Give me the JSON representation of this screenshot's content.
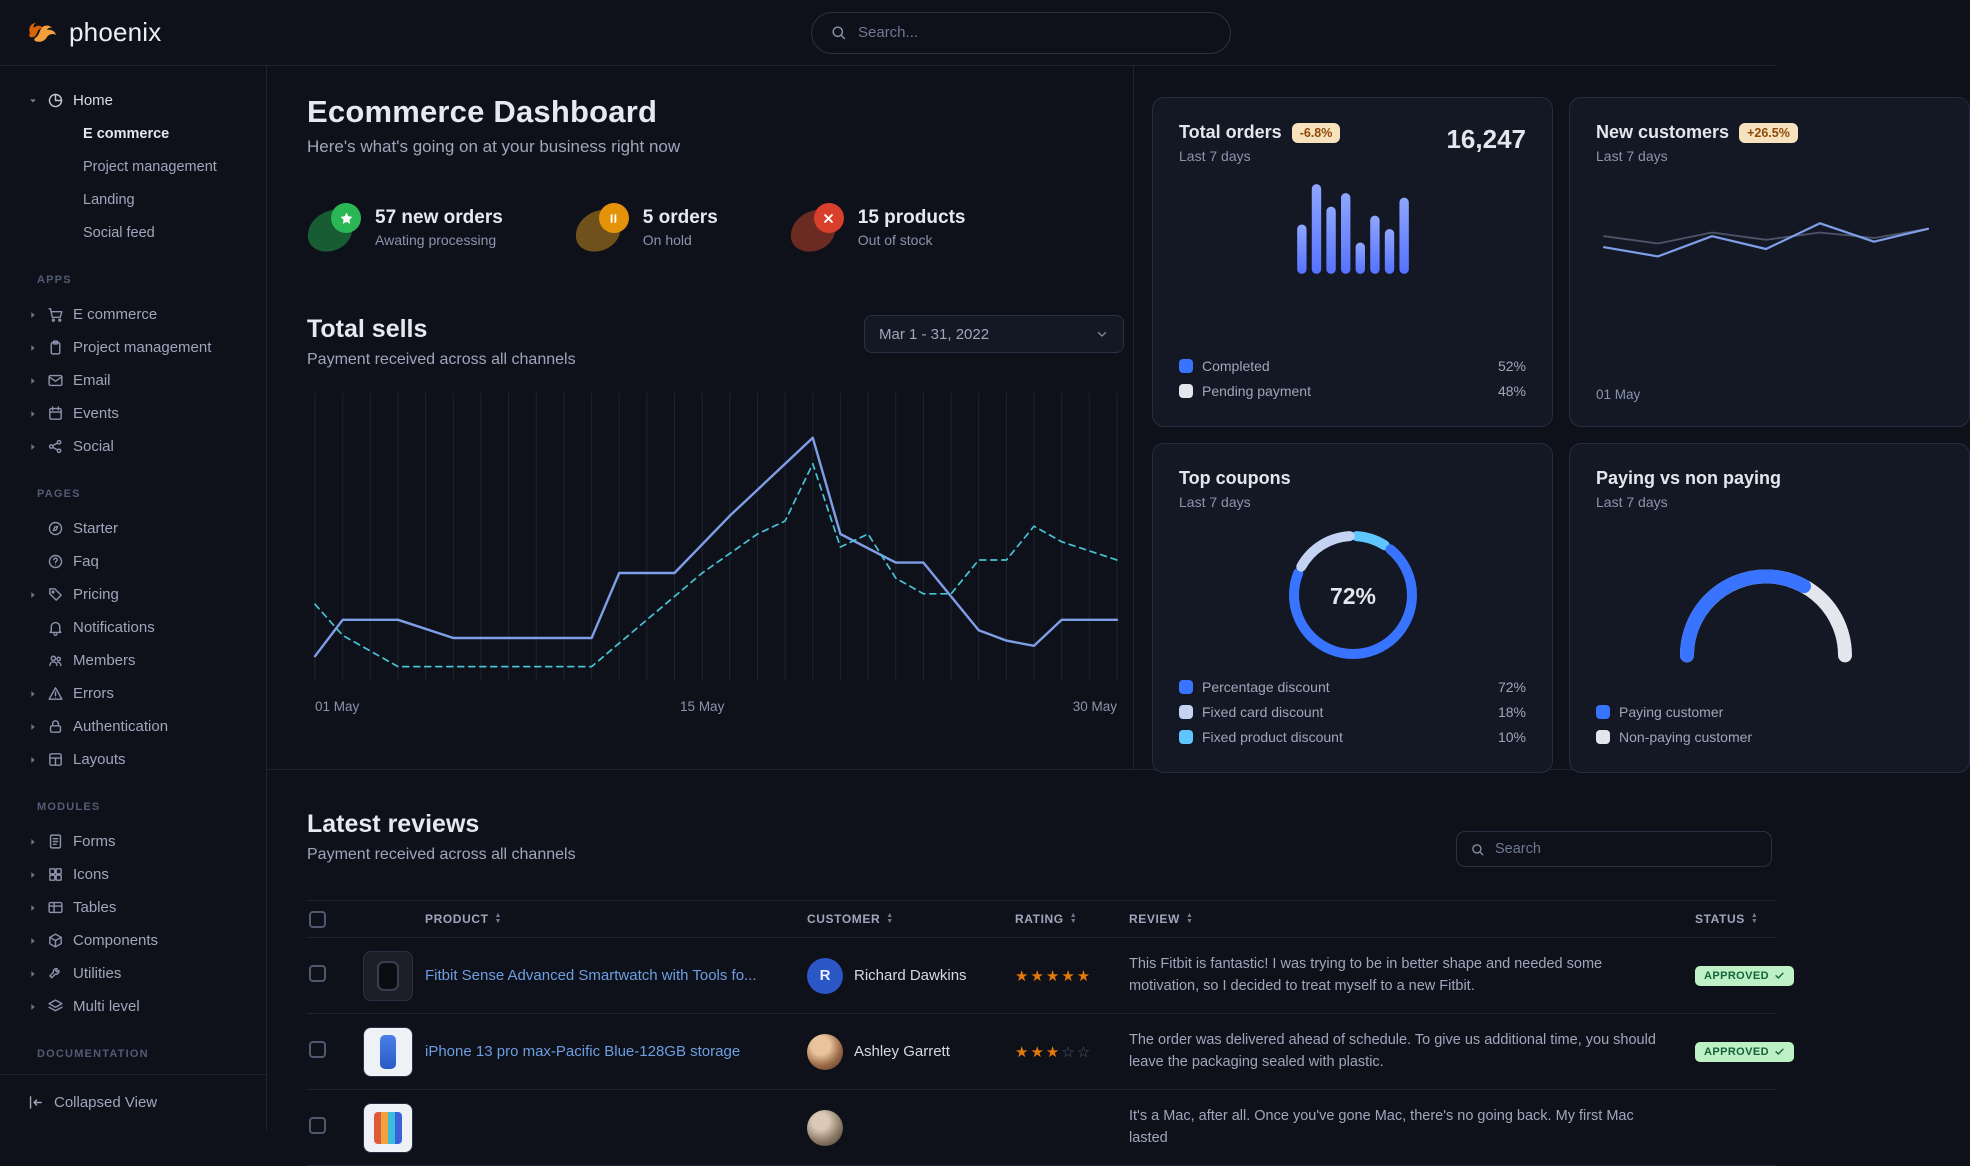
{
  "brand": {
    "name": "phoenix"
  },
  "topbar": {
    "search_placeholder": "Search..."
  },
  "sidebar": {
    "home": {
      "label": "Home",
      "icon": "pie",
      "children": [
        {
          "label": "E commerce",
          "active": true
        },
        {
          "label": "Project management",
          "active": false
        },
        {
          "label": "Landing",
          "active": false
        },
        {
          "label": "Social feed",
          "active": false
        }
      ]
    },
    "sections": [
      {
        "label": "APPS",
        "items": [
          {
            "label": "E commerce",
            "icon": "cart",
            "caret": true
          },
          {
            "label": "Project management",
            "icon": "clipboard",
            "caret": true
          },
          {
            "label": "Email",
            "icon": "mail",
            "caret": true
          },
          {
            "label": "Events",
            "icon": "calendar",
            "caret": true
          },
          {
            "label": "Social",
            "icon": "share",
            "caret": true
          }
        ]
      },
      {
        "label": "PAGES",
        "items": [
          {
            "label": "Starter",
            "icon": "compass",
            "caret": false
          },
          {
            "label": "Faq",
            "icon": "question",
            "caret": false
          },
          {
            "label": "Pricing",
            "icon": "tag",
            "caret": true
          },
          {
            "label": "Notifications",
            "icon": "bell",
            "caret": false
          },
          {
            "label": "Members",
            "icon": "users",
            "caret": false
          },
          {
            "label": "Errors",
            "icon": "warning",
            "caret": true
          },
          {
            "label": "Authentication",
            "icon": "lock",
            "caret": true
          },
          {
            "label": "Layouts",
            "icon": "layout",
            "caret": true
          }
        ]
      },
      {
        "label": "MODULES",
        "items": [
          {
            "label": "Forms",
            "icon": "file",
            "caret": true
          },
          {
            "label": "Icons",
            "icon": "grid",
            "caret": true
          },
          {
            "label": "Tables",
            "icon": "table",
            "caret": true
          },
          {
            "label": "Components",
            "icon": "box",
            "caret": true
          },
          {
            "label": "Utilities",
            "icon": "wrench",
            "caret": true
          },
          {
            "label": "Multi level",
            "icon": "layers",
            "caret": true
          }
        ]
      },
      {
        "label": "DOCUMENTATION",
        "items": []
      }
    ],
    "footer": {
      "label": "Collapsed View"
    }
  },
  "dashboard": {
    "title": "Ecommerce Dashboard",
    "subtitle": "Here's what's going on at your business right now",
    "stats": [
      {
        "value": "57 new orders",
        "caption": "Awating processing",
        "icon": "star",
        "color": "green"
      },
      {
        "value": "5 orders",
        "caption": "On hold",
        "icon": "pause",
        "color": "orange"
      },
      {
        "value": "15 products",
        "caption": "Out of stock",
        "icon": "x",
        "color": "red"
      }
    ]
  },
  "total_sells": {
    "title": "Total sells",
    "subtitle": "Payment received across all channels",
    "date_range": "Mar 1 - 31, 2022",
    "chart": {
      "type": "line",
      "x_ticks": [
        "01 May",
        "15 May",
        "30 May"
      ],
      "days": 30,
      "series": [
        {
          "name": "current",
          "style": "solid",
          "color": "#7e9fe8",
          "points": [
            [
              1,
              8
            ],
            [
              2,
              22
            ],
            [
              4,
              22
            ],
            [
              6,
              15
            ],
            [
              11,
              15
            ],
            [
              12,
              40
            ],
            [
              14,
              40
            ],
            [
              16,
              62
            ],
            [
              19,
              92
            ],
            [
              20,
              55
            ],
            [
              22,
              44
            ],
            [
              23,
              44
            ],
            [
              25,
              18
            ],
            [
              26,
              14
            ],
            [
              27,
              12
            ],
            [
              28,
              22
            ],
            [
              30,
              22
            ]
          ]
        },
        {
          "name": "previous",
          "style": "dashed",
          "color": "#46c3d4",
          "points": [
            [
              1,
              28
            ],
            [
              2,
              16
            ],
            [
              4,
              4
            ],
            [
              11,
              4
            ],
            [
              13,
              22
            ],
            [
              15,
              40
            ],
            [
              17,
              55
            ],
            [
              18,
              60
            ],
            [
              19,
              82
            ],
            [
              20,
              50
            ],
            [
              21,
              55
            ],
            [
              22,
              38
            ],
            [
              23,
              32
            ],
            [
              24,
              32
            ],
            [
              25,
              45
            ],
            [
              26,
              45
            ],
            [
              27,
              58
            ],
            [
              28,
              52
            ],
            [
              30,
              45
            ]
          ]
        }
      ]
    }
  },
  "cards": {
    "total_orders": {
      "title": "Total orders",
      "badge": "-6.8%",
      "period": "Last 7 days",
      "value": "16,247",
      "chart": {
        "type": "bar",
        "values": [
          55,
          100,
          75,
          90,
          35,
          65,
          50,
          85
        ]
      },
      "legend": [
        {
          "label": "Completed",
          "value": "52%",
          "color": "#3874ff"
        },
        {
          "label": "Pending payment",
          "value": "48%",
          "color": "#e3e6ed"
        }
      ]
    },
    "new_customers": {
      "title": "New customers",
      "badge": "+26.5%",
      "period": "Last 7 days",
      "axis_label": "01 May",
      "chart": {
        "type": "line",
        "series": [
          {
            "name": "previous",
            "color": "#4c5468",
            "values": [
              52,
              44,
              56,
              48,
              56,
              50,
              60
            ]
          },
          {
            "name": "current",
            "color": "#7e9fe8",
            "values": [
              40,
              30,
              52,
              38,
              66,
              46,
              60
            ]
          }
        ]
      }
    },
    "top_coupons": {
      "title": "Top coupons",
      "period": "Last 7 days",
      "center_value": "72%",
      "chart": {
        "type": "donut",
        "slices": [
          {
            "label": "Fixed product discount",
            "value": 10,
            "color": "#60c6ff"
          },
          {
            "label": "Percentage discount",
            "value": 72,
            "color": "#3874ff"
          },
          {
            "label": "Fixed card discount",
            "value": 18,
            "color": "#c5d3f2"
          }
        ]
      },
      "legend": [
        {
          "label": "Percentage discount",
          "value": "72%",
          "color": "#3874ff"
        },
        {
          "label": "Fixed card discount",
          "value": "18%",
          "color": "#c5d3f2"
        },
        {
          "label": "Fixed product discount",
          "value": "10%",
          "color": "#60c6ff"
        }
      ]
    },
    "paying_vs_non_paying": {
      "title": "Paying vs non paying",
      "period": "Last 7 days",
      "chart": {
        "type": "gauge",
        "value": 66,
        "color": "#3874ff",
        "track_color": "#e3e6ed"
      },
      "legend": [
        {
          "label": "Paying customer",
          "color": "#3874ff"
        },
        {
          "label": "Non-paying customer",
          "color": "#e3e6ed"
        }
      ]
    }
  },
  "reviews": {
    "title": "Latest reviews",
    "subtitle": "Payment received across all channels",
    "search_placeholder": "Search",
    "columns": [
      "PRODUCT",
      "CUSTOMER",
      "RATING",
      "REVIEW",
      "STATUS"
    ],
    "rows": [
      {
        "product": "Fitbit Sense Advanced Smartwatch with Tools fo...",
        "customer": "Richard Dawkins",
        "avatar": {
          "type": "initial",
          "text": "R"
        },
        "thumb": "watch",
        "rating": 5,
        "review": "This Fitbit is fantastic! I was trying to be in better shape and needed some motivation, so I decided to treat myself to a new Fitbit.",
        "status": "APPROVED",
        "status_type": "success"
      },
      {
        "product": "iPhone 13 pro max-Pacific Blue-128GB storage",
        "customer": "Ashley Garrett",
        "avatar": {
          "type": "photo",
          "tone": "warm"
        },
        "thumb": "phone",
        "rating": 3,
        "review": "The order was delivered ahead of schedule. To give us additional time, you should leave the packaging sealed with plastic.",
        "status": "APPROVED",
        "status_type": "success"
      },
      {
        "product": "",
        "customer": "",
        "avatar": {
          "type": "photo",
          "tone": "cool"
        },
        "thumb": "laptop",
        "rating": 0,
        "review": "It's a Mac, after all. Once you've gone Mac, there's no going back. My first Mac lasted",
        "status": "",
        "status_type": ""
      }
    ]
  }
}
